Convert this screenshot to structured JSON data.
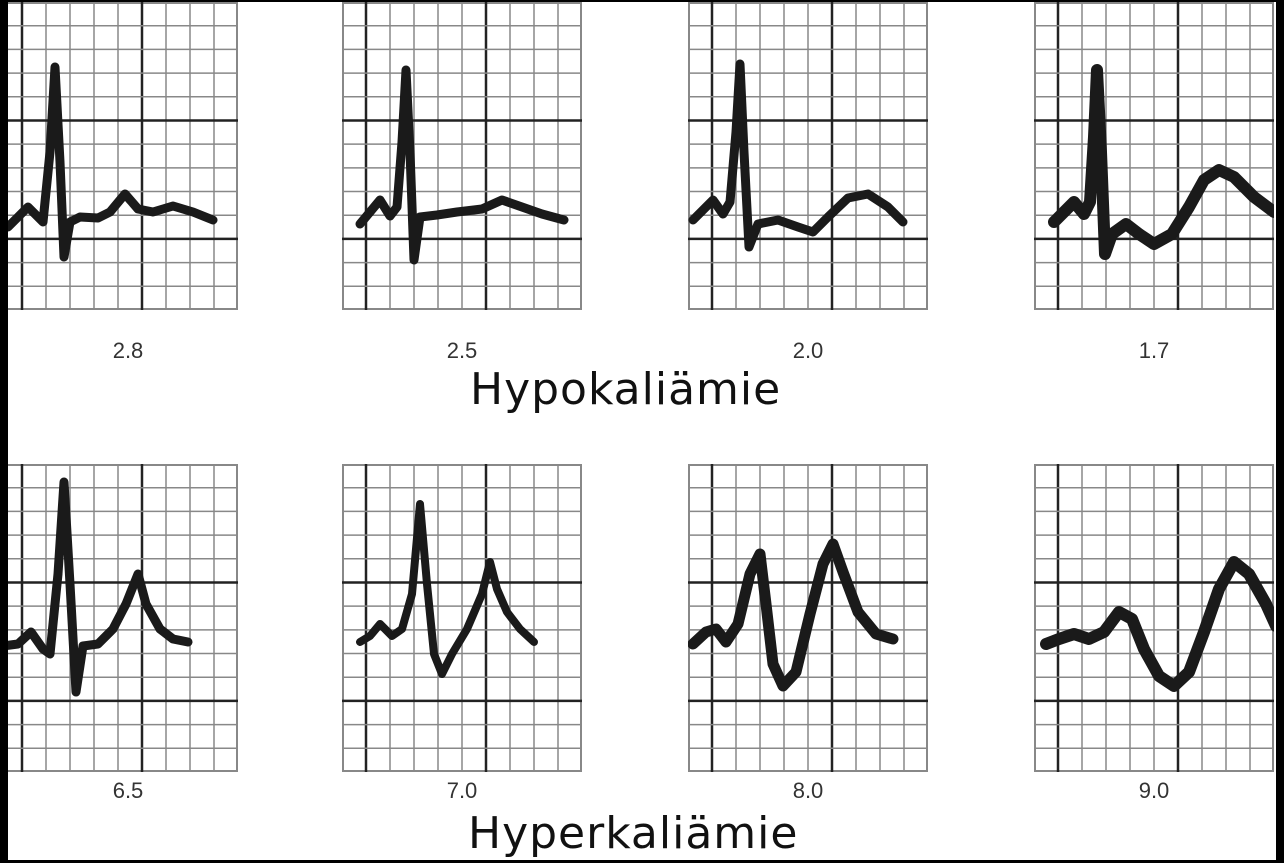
{
  "hypo": {
    "title": "Hypokaliämie",
    "panels": [
      {
        "label": "2.8"
      },
      {
        "label": "2.5"
      },
      {
        "label": "2.0"
      },
      {
        "label": "1.7"
      }
    ]
  },
  "hyper": {
    "title": "Hyperkaliämie",
    "panels": [
      {
        "label": "6.5"
      },
      {
        "label": "7.0"
      },
      {
        "label": "8.0"
      },
      {
        "label": "9.0"
      }
    ]
  },
  "colors": {
    "grid": "#888888",
    "major_grid": "#222222",
    "trace": "#1a1a1a",
    "frame": "#000000"
  }
}
